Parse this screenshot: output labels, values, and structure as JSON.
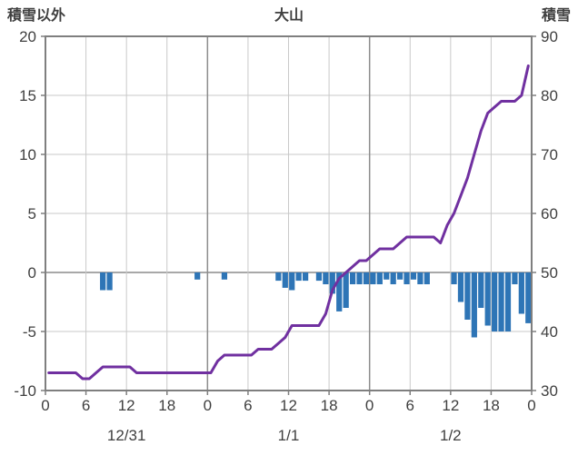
{
  "chart_data": {
    "type": "bar+line",
    "title": "大山",
    "left_axis": {
      "title": "積雪以外",
      "min": -10,
      "max": 20,
      "tick_step": 5,
      "ticks": [
        -10,
        -5,
        0,
        5,
        10,
        15,
        20
      ]
    },
    "right_axis": {
      "title": "積雪",
      "min": 30,
      "max": 90,
      "tick_step": 10,
      "ticks": [
        30,
        40,
        50,
        60,
        70,
        80,
        90
      ]
    },
    "x_axis": {
      "total_hours": 72,
      "tick_interval_hours": 6,
      "hour_labels": [
        "0",
        "6",
        "12",
        "18",
        "0",
        "6",
        "12",
        "18",
        "0",
        "6",
        "12",
        "18",
        "0"
      ],
      "day_labels": [
        "12/31",
        "1/1",
        "1/2"
      ]
    },
    "bar_series": {
      "axis": "left",
      "color": "#2E75B6",
      "values": [
        null,
        null,
        null,
        null,
        null,
        null,
        null,
        null,
        -1.5,
        -1.5,
        null,
        null,
        null,
        null,
        null,
        null,
        null,
        null,
        null,
        null,
        null,
        null,
        -0.6,
        null,
        null,
        null,
        -0.6,
        null,
        null,
        null,
        null,
        null,
        null,
        null,
        -0.7,
        -1.3,
        -1.5,
        -0.7,
        -0.7,
        null,
        -0.7,
        -1.0,
        -1.8,
        -3.3,
        -3.0,
        -1.0,
        -1.0,
        -1.0,
        -1.0,
        -1.0,
        -0.6,
        -1.0,
        -0.6,
        -1.0,
        -0.6,
        -1.0,
        -1.0,
        null,
        null,
        null,
        -1.0,
        -2.5,
        -4.0,
        -5.5,
        -3.0,
        -4.5,
        -5.0,
        -5.0,
        -5.0,
        -1.0,
        -3.5,
        -4.3
      ]
    },
    "line_series": {
      "axis": "right",
      "color": "#7030A0",
      "values": [
        33,
        33,
        33,
        33,
        33,
        32,
        32,
        33,
        34,
        34,
        34,
        34,
        34,
        33,
        33,
        33,
        33,
        33,
        33,
        33,
        33,
        33,
        33,
        33,
        33,
        35,
        36,
        36,
        36,
        36,
        36,
        37,
        37,
        37,
        38,
        39,
        41,
        41,
        41,
        41,
        41,
        43,
        47,
        49,
        50,
        51,
        52,
        52,
        53,
        54,
        54,
        54,
        55,
        56,
        56,
        56,
        56,
        56,
        55,
        58,
        60,
        63,
        66,
        70,
        74,
        77,
        78,
        79,
        79,
        79,
        80,
        85
      ]
    },
    "style": {
      "grid_color": "#C9C9C9",
      "major_grid_color": "#8C8C8C",
      "frame_color": "#7F7F7F",
      "text_color": "#3F3F3F",
      "background": "#FFFFFF"
    }
  }
}
